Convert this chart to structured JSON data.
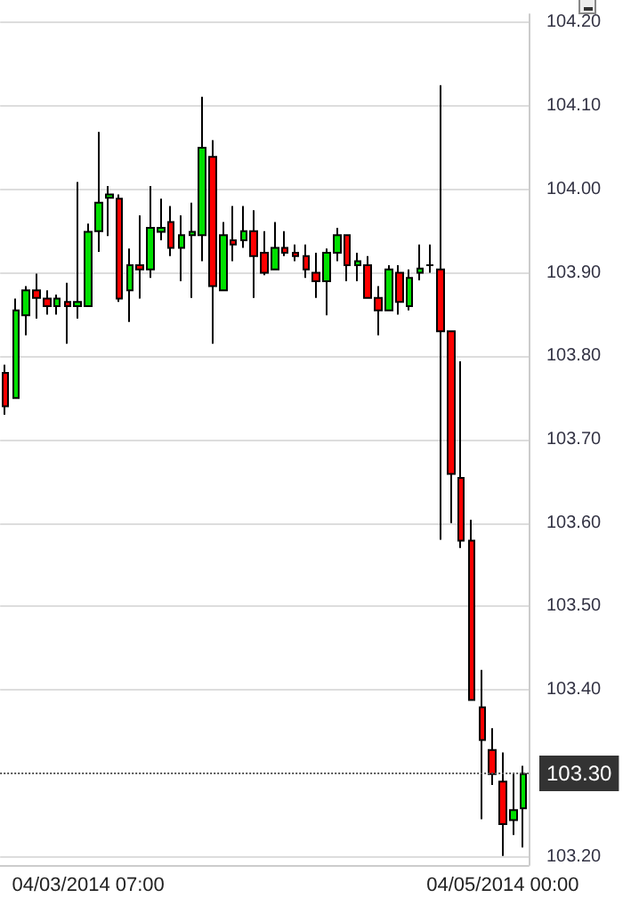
{
  "chart_data": {
    "type": "candlestick",
    "categories": [
      null,
      null,
      null,
      null,
      null,
      null,
      null,
      null,
      "04/03/2014 07:00",
      null,
      null,
      null,
      null,
      null,
      null,
      null,
      null,
      null,
      null,
      null,
      null,
      null,
      null,
      null,
      null,
      null,
      null,
      null,
      null,
      null,
      null,
      null,
      null,
      null,
      null,
      null,
      null,
      null,
      null,
      null,
      null,
      null,
      null,
      null,
      null,
      null,
      null,
      null,
      "04/05/2014 00:00",
      null,
      null
    ],
    "ohlc": [
      [
        103.78,
        103.79,
        103.73,
        103.74
      ],
      [
        103.75,
        103.869,
        103.75,
        103.855
      ],
      [
        103.849,
        103.884,
        103.825,
        103.879
      ],
      [
        103.879,
        103.899,
        103.845,
        103.87
      ],
      [
        103.869,
        103.879,
        103.85,
        103.86
      ],
      [
        103.86,
        103.874,
        103.85,
        103.869
      ],
      [
        103.865,
        103.888,
        103.815,
        103.86
      ],
      [
        103.86,
        104.009,
        103.845,
        103.865
      ],
      [
        103.86,
        103.959,
        103.86,
        103.949
      ],
      [
        103.95,
        104.069,
        103.925,
        103.984
      ],
      [
        103.99,
        104.004,
        103.944,
        103.994
      ],
      [
        103.989,
        103.994,
        103.865,
        103.869
      ],
      [
        103.879,
        103.929,
        103.841,
        103.909
      ],
      [
        103.909,
        103.969,
        103.869,
        103.904
      ],
      [
        103.904,
        104.004,
        103.894,
        103.954
      ],
      [
        103.949,
        103.989,
        103.939,
        103.954
      ],
      [
        103.961,
        103.98,
        103.92,
        103.93
      ],
      [
        103.93,
        103.969,
        103.89,
        103.945
      ],
      [
        103.945,
        103.984,
        103.87,
        103.949
      ],
      [
        103.945,
        104.111,
        103.914,
        104.05
      ],
      [
        104.039,
        104.059,
        103.815,
        103.884
      ],
      [
        103.879,
        103.961,
        103.879,
        103.945
      ],
      [
        103.939,
        103.98,
        103.914,
        103.934
      ],
      [
        103.939,
        103.98,
        103.93,
        103.95
      ],
      [
        103.95,
        103.975,
        103.87,
        103.92
      ],
      [
        103.924,
        103.95,
        103.897,
        103.9
      ],
      [
        103.904,
        103.961,
        103.904,
        103.93
      ],
      [
        103.93,
        103.95,
        103.92,
        103.924
      ],
      [
        103.924,
        103.934,
        103.914,
        103.92
      ],
      [
        103.92,
        103.934,
        103.894,
        103.904
      ],
      [
        103.9,
        103.924,
        103.87,
        103.89
      ],
      [
        103.89,
        103.929,
        103.849,
        103.924
      ],
      [
        103.924,
        103.954,
        103.914,
        103.945
      ],
      [
        103.945,
        103.945,
        103.89,
        103.909
      ],
      [
        103.909,
        103.924,
        103.89,
        103.914
      ],
      [
        103.909,
        103.92,
        103.87,
        103.87
      ],
      [
        103.87,
        103.884,
        103.825,
        103.855
      ],
      [
        103.855,
        103.909,
        103.855,
        103.904
      ],
      [
        103.9,
        103.909,
        103.85,
        103.865
      ],
      [
        103.86,
        103.904,
        103.855,
        103.894
      ],
      [
        103.9,
        103.934,
        103.891,
        103.905
      ],
      [
        103.909,
        103.934,
        103.9,
        103.909
      ],
      [
        103.904,
        104.125,
        103.58,
        103.83
      ],
      [
        103.83,
        103.83,
        103.6,
        103.659
      ],
      [
        103.654,
        103.794,
        103.57,
        103.579
      ],
      [
        103.579,
        103.604,
        103.388,
        103.388
      ],
      [
        103.379,
        103.424,
        103.245,
        103.34
      ],
      [
        103.328,
        103.354,
        103.286,
        103.299
      ],
      [
        103.29,
        103.325,
        103.201,
        103.239
      ],
      [
        103.244,
        103.299,
        103.226,
        103.256
      ],
      [
        103.258,
        103.309,
        103.211,
        103.299
      ]
    ],
    "colors": [
      "#ff0000",
      "#00e000",
      "#00e000",
      "#ff0000",
      "#ff0000",
      "#00e000",
      "#ff0000",
      "#00e000",
      "#00e000",
      "#00e000",
      "#00e000",
      "#ff0000",
      "#00e000",
      "#ff0000",
      "#00e000",
      "#00e000",
      "#ff0000",
      "#00e000",
      "#00e000",
      "#00e000",
      "#ff0000",
      "#00e000",
      "#ff0000",
      "#00e000",
      "#ff0000",
      "#ff0000",
      "#00e000",
      "#ff0000",
      "#ff0000",
      "#ff0000",
      "#ff0000",
      "#00e000",
      "#00e000",
      "#ff0000",
      "#00e000",
      "#ff0000",
      "#ff0000",
      "#00e000",
      "#ff0000",
      "#00e000",
      "#00e000",
      "#000000",
      "#ff0000",
      "#ff0000",
      "#ff0000",
      "#ff0000",
      "#ff0000",
      "#ff0000",
      "#ff0000",
      "#00e000",
      "#00e000"
    ],
    "ylim": [
      103.19,
      104.21
    ],
    "yticks": [
      {
        "value": 103.2,
        "label": "103.20"
      },
      {
        "value": 103.4,
        "label": "103.40"
      },
      {
        "value": 103.5,
        "label": "103.50"
      },
      {
        "value": 103.6,
        "label": "103.60"
      },
      {
        "value": 103.7,
        "label": "103.70"
      },
      {
        "value": 103.8,
        "label": "103.80"
      },
      {
        "value": 103.9,
        "label": "103.90"
      },
      {
        "value": 104.0,
        "label": "104.00"
      },
      {
        "value": 104.1,
        "label": "104.10"
      },
      {
        "value": 104.2,
        "label": "104.20"
      }
    ],
    "grid": "y",
    "ref_lines": [
      {
        "axis": "y",
        "value": 103.3,
        "label": "103.30",
        "line_style": "dotted",
        "color": "#555555"
      }
    ]
  }
}
